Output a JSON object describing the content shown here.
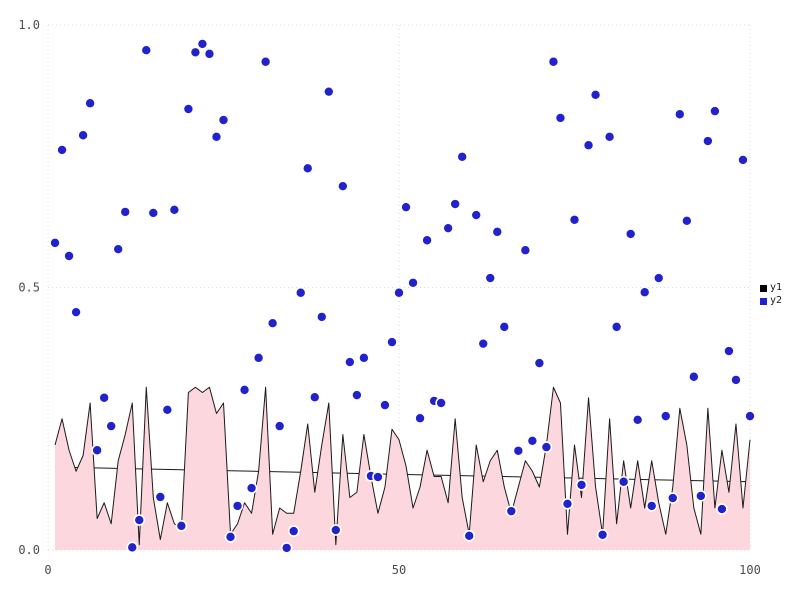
{
  "legend": {
    "items": [
      {
        "label": "y1",
        "color": "#000000"
      },
      {
        "label": "y2",
        "color": "#2222cc"
      }
    ]
  },
  "colors": {
    "background": "#ffffff",
    "grid": "#d9d9d9",
    "tick_text": "#4d4d4d",
    "area_fill": "#fcd7de",
    "area_outline": "#1a1a1a",
    "scatter_fill": "#2222cc",
    "scatter_halo": "#ffffff",
    "trend_line": "#1a1a1a"
  },
  "chart_data": {
    "type": "mixed",
    "xlim": [
      0,
      100
    ],
    "ylim": [
      0,
      1
    ],
    "xticks": [
      0,
      50,
      100
    ],
    "xtick_labels": [
      "0",
      "50",
      "100"
    ],
    "yticks": [
      0,
      0.5,
      1
    ],
    "ytick_labels": [
      "0.0",
      "0.5",
      "1.0"
    ],
    "grid": true,
    "legend_position": "right-outside",
    "x_start": 1,
    "x_step": 1,
    "series": [
      {
        "name": "y1",
        "type": "area",
        "fill": "#fcd7de",
        "line": "#1a1a1a",
        "values": [
          0.2,
          0.25,
          0.19,
          0.15,
          0.18,
          0.28,
          0.06,
          0.09,
          0.05,
          0.17,
          0.22,
          0.28,
          0.01,
          0.31,
          0.1,
          0.02,
          0.09,
          0.05,
          0.04,
          0.3,
          0.31,
          0.3,
          0.31,
          0.26,
          0.28,
          0.03,
          0.05,
          0.09,
          0.07,
          0.15,
          0.31,
          0.03,
          0.08,
          0.07,
          0.07,
          0.15,
          0.24,
          0.11,
          0.2,
          0.28,
          0.01,
          0.22,
          0.1,
          0.11,
          0.22,
          0.14,
          0.07,
          0.12,
          0.23,
          0.21,
          0.16,
          0.08,
          0.12,
          0.19,
          0.14,
          0.14,
          0.09,
          0.25,
          0.1,
          0.03,
          0.2,
          0.13,
          0.17,
          0.19,
          0.12,
          0.07,
          0.12,
          0.17,
          0.15,
          0.12,
          0.2,
          0.31,
          0.28,
          0.03,
          0.2,
          0.1,
          0.29,
          0.12,
          0.03,
          0.25,
          0.05,
          0.17,
          0.08,
          0.17,
          0.08,
          0.17,
          0.09,
          0.03,
          0.12,
          0.27,
          0.2,
          0.08,
          0.03,
          0.27,
          0.08,
          0.19,
          0.11,
          0.24,
          0.08,
          0.21
        ]
      },
      {
        "name": "y2",
        "type": "scatter",
        "color": "#2222cc",
        "values": [
          0.585,
          0.762,
          0.56,
          0.453,
          0.79,
          0.851,
          0.19,
          0.29,
          0.236,
          0.573,
          0.644,
          0.005,
          0.057,
          0.952,
          0.642,
          0.101,
          0.267,
          0.648,
          0.046,
          0.84,
          0.948,
          0.964,
          0.945,
          0.787,
          0.819,
          0.025,
          0.084,
          0.305,
          0.118,
          0.366,
          0.93,
          0.432,
          0.236,
          0.004,
          0.036,
          0.49,
          0.727,
          0.291,
          0.444,
          0.873,
          0.038,
          0.693,
          0.358,
          0.295,
          0.366,
          0.141,
          0.139,
          0.276,
          0.396,
          0.49,
          0.653,
          0.509,
          0.251,
          0.59,
          0.284,
          0.28,
          0.613,
          0.659,
          0.749,
          0.027,
          0.638,
          0.393,
          0.518,
          0.606,
          0.425,
          0.074,
          0.189,
          0.571,
          0.208,
          0.356,
          0.196,
          0.93,
          0.823,
          0.088,
          0.629,
          0.124,
          0.771,
          0.867,
          0.029,
          0.787,
          0.425,
          0.13,
          0.602,
          0.248,
          0.491,
          0.084,
          0.518,
          0.255,
          0.099,
          0.83,
          0.627,
          0.33,
          0.103,
          0.779,
          0.836,
          0.078,
          0.379,
          0.324,
          0.743,
          0.255
        ]
      },
      {
        "name": "y1-trend",
        "type": "line",
        "color": "#1a1a1a",
        "points": [
          [
            1,
            0.158
          ],
          [
            100,
            0.13
          ]
        ]
      }
    ]
  }
}
